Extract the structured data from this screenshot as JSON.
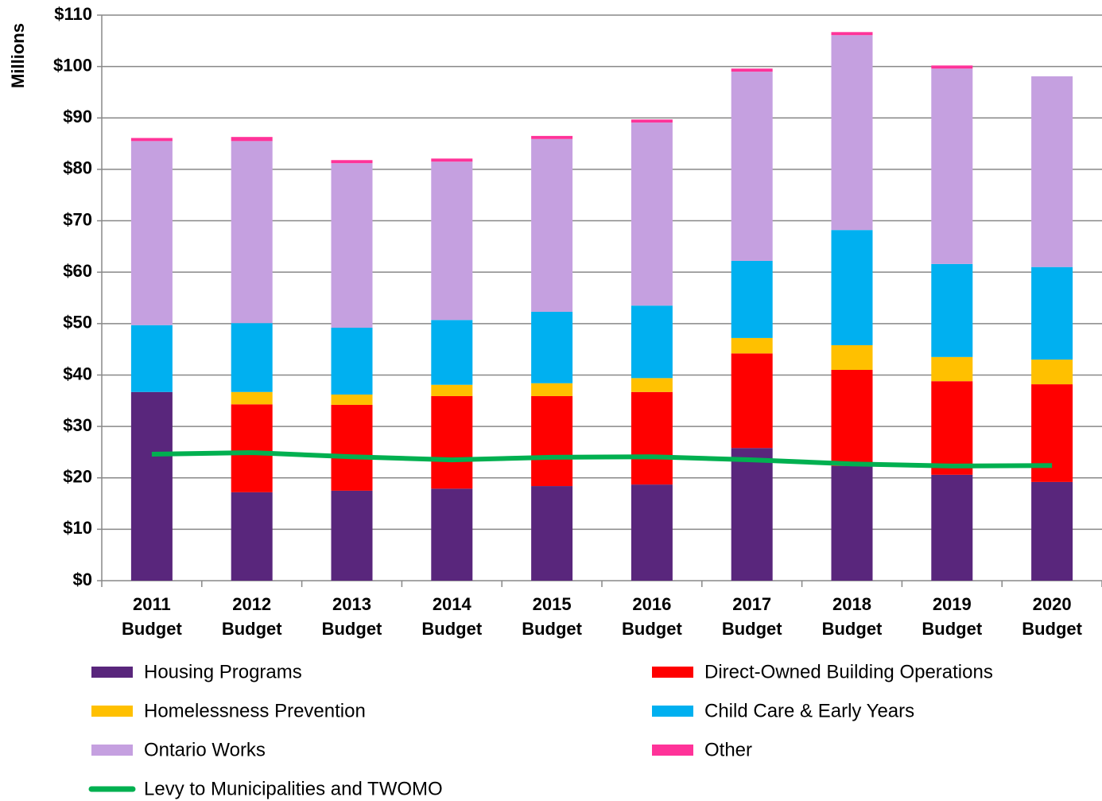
{
  "chart_data": {
    "type": "bar",
    "stacked": true,
    "y_label": "Millions",
    "categories": [
      "2011 Budget",
      "2012 Budget",
      "2013 Budget",
      "2014 Budget",
      "2015 Budget",
      "2016 Budget",
      "2017 Budget",
      "2018 Budget",
      "2019 Budget",
      "2020 Budget"
    ],
    "series": [
      {
        "name": "Housing Programs",
        "color": "#59267c",
        "values": [
          36.7,
          17.2,
          17.5,
          17.9,
          18.4,
          18.7,
          25.8,
          22.3,
          20.6,
          19.2
        ]
      },
      {
        "name": "Direct-Owned Building Operations",
        "color": "#ff0000",
        "values": [
          0,
          17.1,
          16.7,
          18.0,
          17.5,
          18.0,
          18.4,
          18.7,
          18.2,
          19.0
        ]
      },
      {
        "name": "Homelessness Prevention",
        "color": "#ffc000",
        "values": [
          0,
          2.4,
          2.0,
          2.2,
          2.5,
          2.7,
          3.0,
          4.8,
          4.7,
          4.8
        ]
      },
      {
        "name": "Child Care & Early Years",
        "color": "#00b0f0",
        "values": [
          13.0,
          13.4,
          13.0,
          12.6,
          13.9,
          14.1,
          15.0,
          22.4,
          18.1,
          18.0
        ]
      },
      {
        "name": "Ontario Works",
        "color": "#c5a0e0",
        "values": [
          35.8,
          35.4,
          32.0,
          30.8,
          33.6,
          35.6,
          36.8,
          37.9,
          38.0,
          37.1
        ]
      },
      {
        "name": "Other",
        "color": "#ff3399",
        "values": [
          0.6,
          0.8,
          0.6,
          0.6,
          0.6,
          0.6,
          0.6,
          0.6,
          0.6,
          0
        ]
      },
      {
        "name": "Levy to Municipalities and TWOMO",
        "color": "#00b050",
        "type": "line",
        "values": [
          24.6,
          24.9,
          24.1,
          23.5,
          24.0,
          24.1,
          23.5,
          22.7,
          22.3,
          22.4
        ]
      }
    ],
    "ylim": [
      0,
      110
    ],
    "yticks": [
      {
        "value": 0,
        "label": "$0"
      },
      {
        "value": 10,
        "label": "$10"
      },
      {
        "value": 20,
        "label": "$20"
      },
      {
        "value": 30,
        "label": "$30"
      },
      {
        "value": 40,
        "label": "$40"
      },
      {
        "value": 50,
        "label": "$50"
      },
      {
        "value": 60,
        "label": "$60"
      },
      {
        "value": 70,
        "label": "$70"
      },
      {
        "value": 80,
        "label": "$80"
      },
      {
        "value": 90,
        "label": "$90"
      },
      {
        "value": 100,
        "label": "$100"
      },
      {
        "value": 110,
        "label": "$110"
      }
    ],
    "grid": true,
    "legend": "bottom"
  }
}
